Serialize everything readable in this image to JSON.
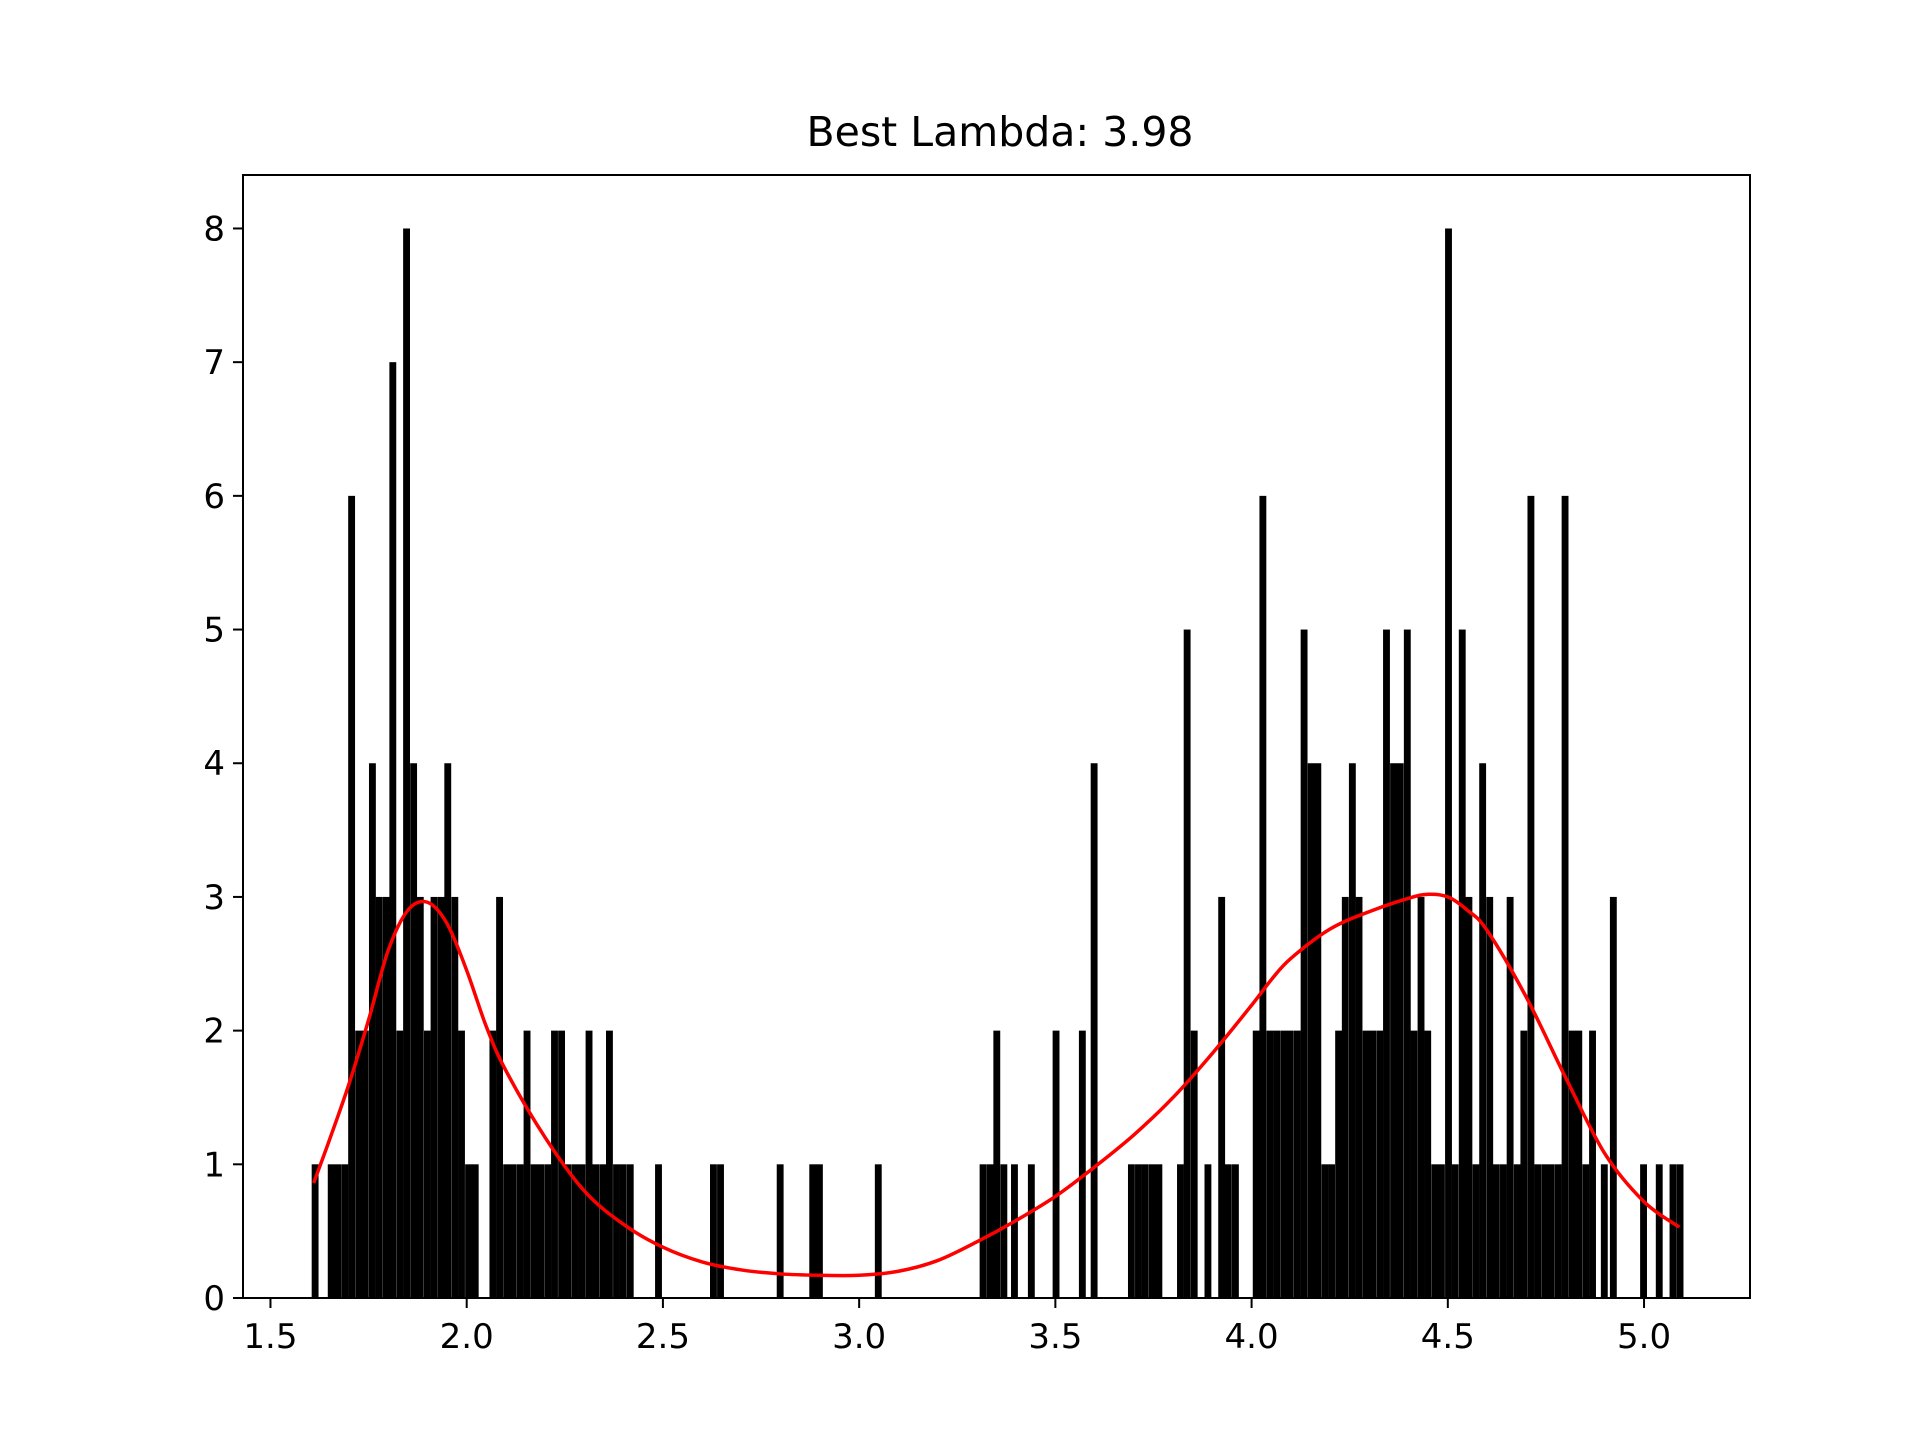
{
  "chart_data": {
    "type": "bar",
    "title": "Best Lambda: 3.98",
    "xlabel": "",
    "ylabel": "",
    "xlim": [
      1.43,
      5.27
    ],
    "ylim": [
      0,
      8.4
    ],
    "x_ticks": [
      1.5,
      2.0,
      2.5,
      3.0,
      3.5,
      4.0,
      4.5,
      5.0
    ],
    "x_tick_labels": [
      "1.5",
      "2.0",
      "2.5",
      "3.0",
      "3.5",
      "4.0",
      "4.5",
      "5.0"
    ],
    "y_ticks": [
      0,
      1,
      2,
      3,
      4,
      5,
      6,
      7,
      8
    ],
    "y_tick_labels": [
      "0",
      "1",
      "2",
      "3",
      "4",
      "5",
      "6",
      "7",
      "8"
    ],
    "grid": false,
    "bar_color": "#000000",
    "curve_color": "#ff0000",
    "bin_width": 0.0175,
    "histogram": {
      "name": "",
      "bin_left_edges": [
        1.605,
        1.646,
        1.663,
        1.681,
        1.698,
        1.716,
        1.733,
        1.751,
        1.768,
        1.786,
        1.803,
        1.821,
        1.838,
        1.856,
        1.873,
        1.891,
        1.908,
        1.926,
        1.943,
        1.961,
        1.978,
        1.996,
        2.013,
        2.058,
        2.075,
        2.093,
        2.11,
        2.128,
        2.145,
        2.163,
        2.18,
        2.198,
        2.215,
        2.233,
        2.25,
        2.268,
        2.285,
        2.303,
        2.32,
        2.338,
        2.355,
        2.373,
        2.39,
        2.408,
        2.48,
        2.62,
        2.638,
        2.79,
        2.873,
        2.89,
        3.04,
        3.307,
        3.325,
        3.342,
        3.36,
        3.387,
        3.43,
        3.493,
        3.56,
        3.59,
        3.685,
        3.703,
        3.72,
        3.738,
        3.755,
        3.81,
        3.827,
        3.845,
        3.88,
        3.915,
        3.932,
        3.95,
        4.003,
        4.02,
        4.038,
        4.055,
        4.073,
        4.09,
        4.108,
        4.125,
        4.143,
        4.16,
        4.178,
        4.195,
        4.213,
        4.23,
        4.248,
        4.265,
        4.283,
        4.3,
        4.318,
        4.335,
        4.353,
        4.37,
        4.388,
        4.405,
        4.423,
        4.44,
        4.458,
        4.475,
        4.493,
        4.51,
        4.528,
        4.545,
        4.563,
        4.58,
        4.598,
        4.615,
        4.633,
        4.65,
        4.668,
        4.685,
        4.703,
        4.72,
        4.738,
        4.755,
        4.773,
        4.79,
        4.808,
        4.825,
        4.843,
        4.86,
        4.89,
        4.913,
        4.99,
        5.03,
        5.065,
        5.083
      ],
      "counts": [
        1,
        1,
        1,
        1,
        6,
        2,
        2,
        4,
        3,
        3,
        7,
        2,
        8,
        4,
        3,
        2,
        3,
        3,
        4,
        3,
        2,
        1,
        1,
        2,
        3,
        1,
        1,
        1,
        2,
        1,
        1,
        1,
        2,
        2,
        1,
        1,
        1,
        2,
        1,
        1,
        2,
        1,
        1,
        1,
        1,
        1,
        1,
        1,
        1,
        1,
        1,
        1,
        1,
        2,
        1,
        1,
        1,
        2,
        2,
        4,
        1,
        1,
        1,
        1,
        1,
        1,
        5,
        2,
        1,
        3,
        1,
        1,
        2,
        6,
        2,
        2,
        2,
        2,
        2,
        5,
        4,
        4,
        1,
        1,
        2,
        3,
        4,
        3,
        2,
        2,
        2,
        5,
        4,
        4,
        5,
        2,
        3,
        2,
        1,
        1,
        8,
        1,
        5,
        3,
        1,
        4,
        3,
        1,
        1,
        3,
        1,
        2,
        6,
        1,
        1,
        1,
        1,
        6,
        2,
        2,
        1,
        2,
        1,
        3,
        1,
        1,
        1,
        1
      ]
    },
    "density_curve": {
      "name": "",
      "x": [
        1.61,
        1.65,
        1.7,
        1.75,
        1.8,
        1.85,
        1.9,
        1.95,
        2.0,
        2.05,
        2.1,
        2.2,
        2.3,
        2.4,
        2.5,
        2.6,
        2.7,
        2.8,
        2.9,
        3.0,
        3.1,
        3.2,
        3.3,
        3.4,
        3.5,
        3.6,
        3.7,
        3.8,
        3.9,
        4.0,
        4.05,
        4.1,
        4.2,
        4.3,
        4.4,
        4.45,
        4.5,
        4.55,
        4.6,
        4.7,
        4.8,
        4.9,
        5.0,
        5.09
      ],
      "y": [
        0.86,
        1.18,
        1.6,
        2.08,
        2.6,
        2.9,
        2.96,
        2.8,
        2.45,
        2.03,
        1.7,
        1.2,
        0.8,
        0.55,
        0.38,
        0.27,
        0.21,
        0.18,
        0.17,
        0.17,
        0.2,
        0.28,
        0.42,
        0.58,
        0.76,
        0.98,
        1.22,
        1.5,
        1.83,
        2.19,
        2.38,
        2.54,
        2.76,
        2.89,
        2.99,
        3.02,
        3.0,
        2.9,
        2.75,
        2.25,
        1.65,
        1.08,
        0.72,
        0.53
      ]
    }
  }
}
